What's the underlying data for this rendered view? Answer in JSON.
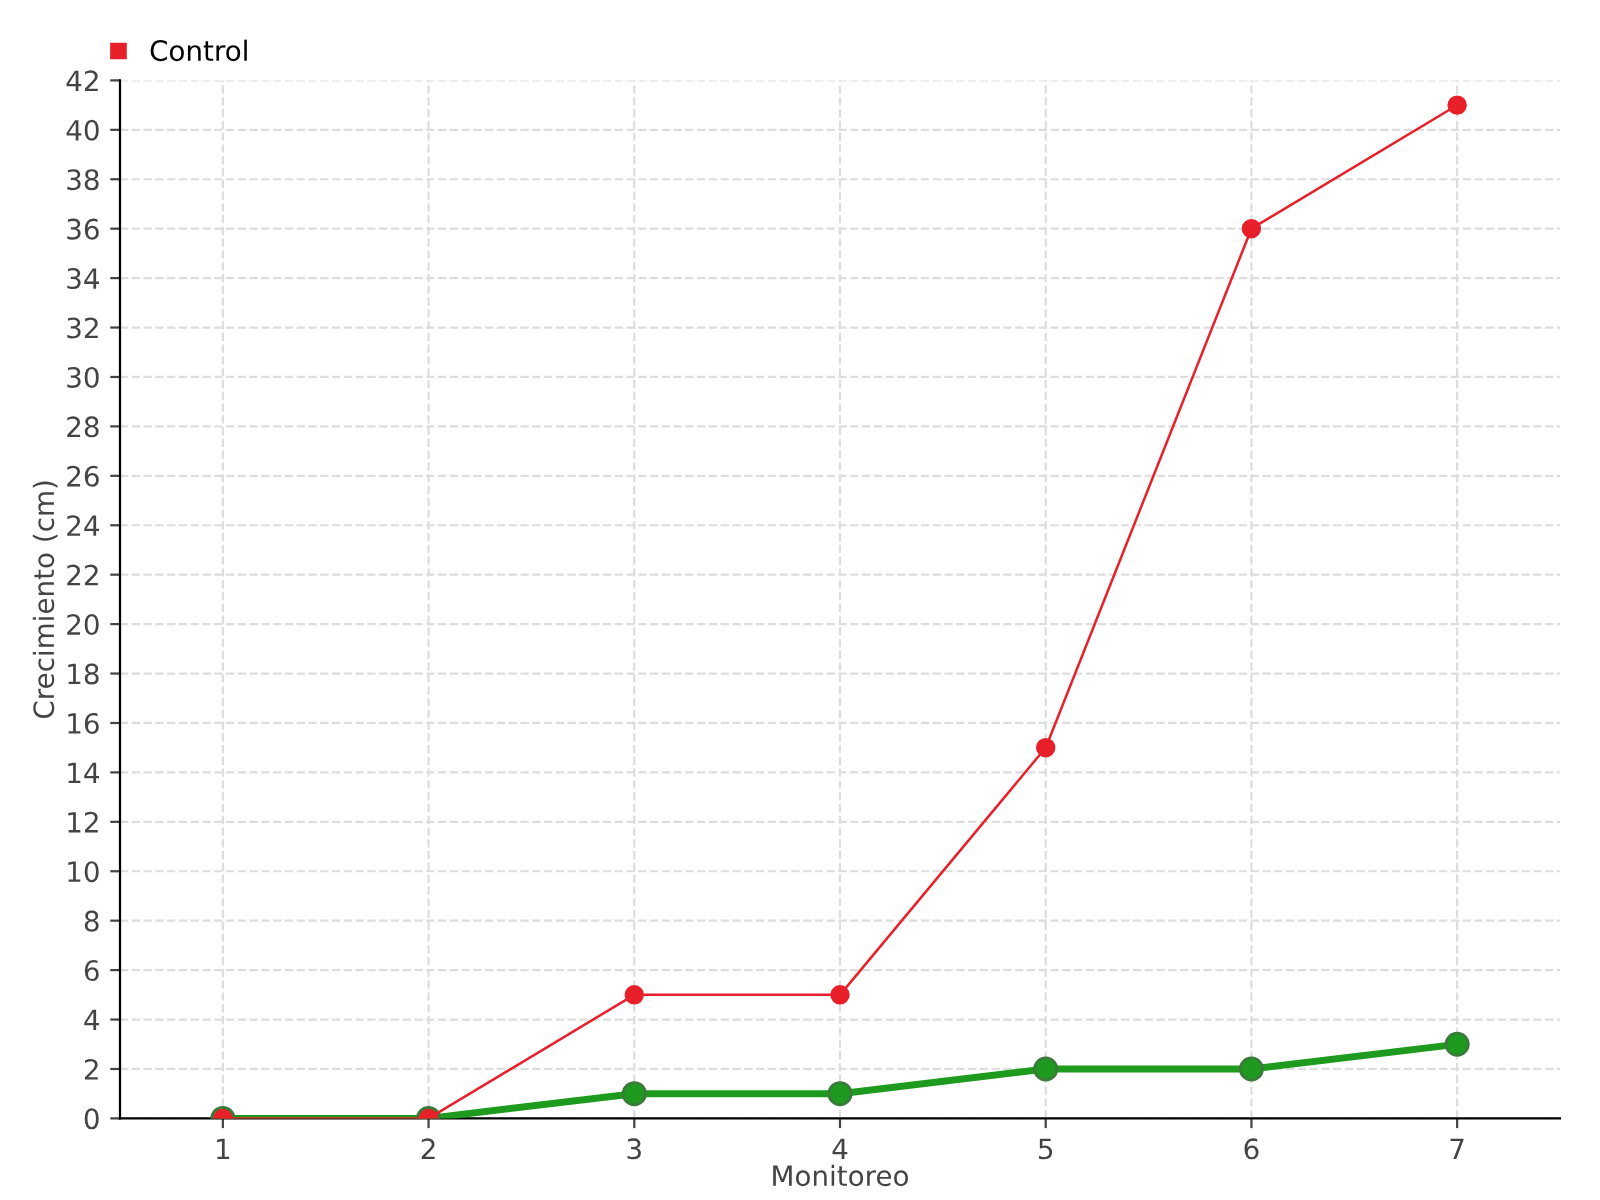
{
  "chart_data": {
    "type": "line",
    "xlabel": "Monitoreo",
    "ylabel": "Crecimiento (cm)",
    "categories": [
      "1",
      "2",
      "3",
      "4",
      "5",
      "6",
      "7"
    ],
    "series": [
      {
        "color": "#1e9b1e",
        "values": [
          0,
          0,
          1,
          1,
          2,
          2,
          3
        ]
      },
      {
        "name": "Control",
        "color": "#e8202a",
        "values": [
          0,
          0,
          5,
          5,
          15,
          36,
          41
        ]
      }
    ],
    "ylim": [
      0,
      42
    ],
    "yticks": [
      0,
      2,
      4,
      6,
      8,
      10,
      12,
      14,
      16,
      18,
      20,
      22,
      24,
      26,
      28,
      30,
      32,
      34,
      36,
      38,
      40,
      42
    ],
    "grid": true,
    "legend": "top left",
    "marker": "circle",
    "line_style": "solid"
  }
}
